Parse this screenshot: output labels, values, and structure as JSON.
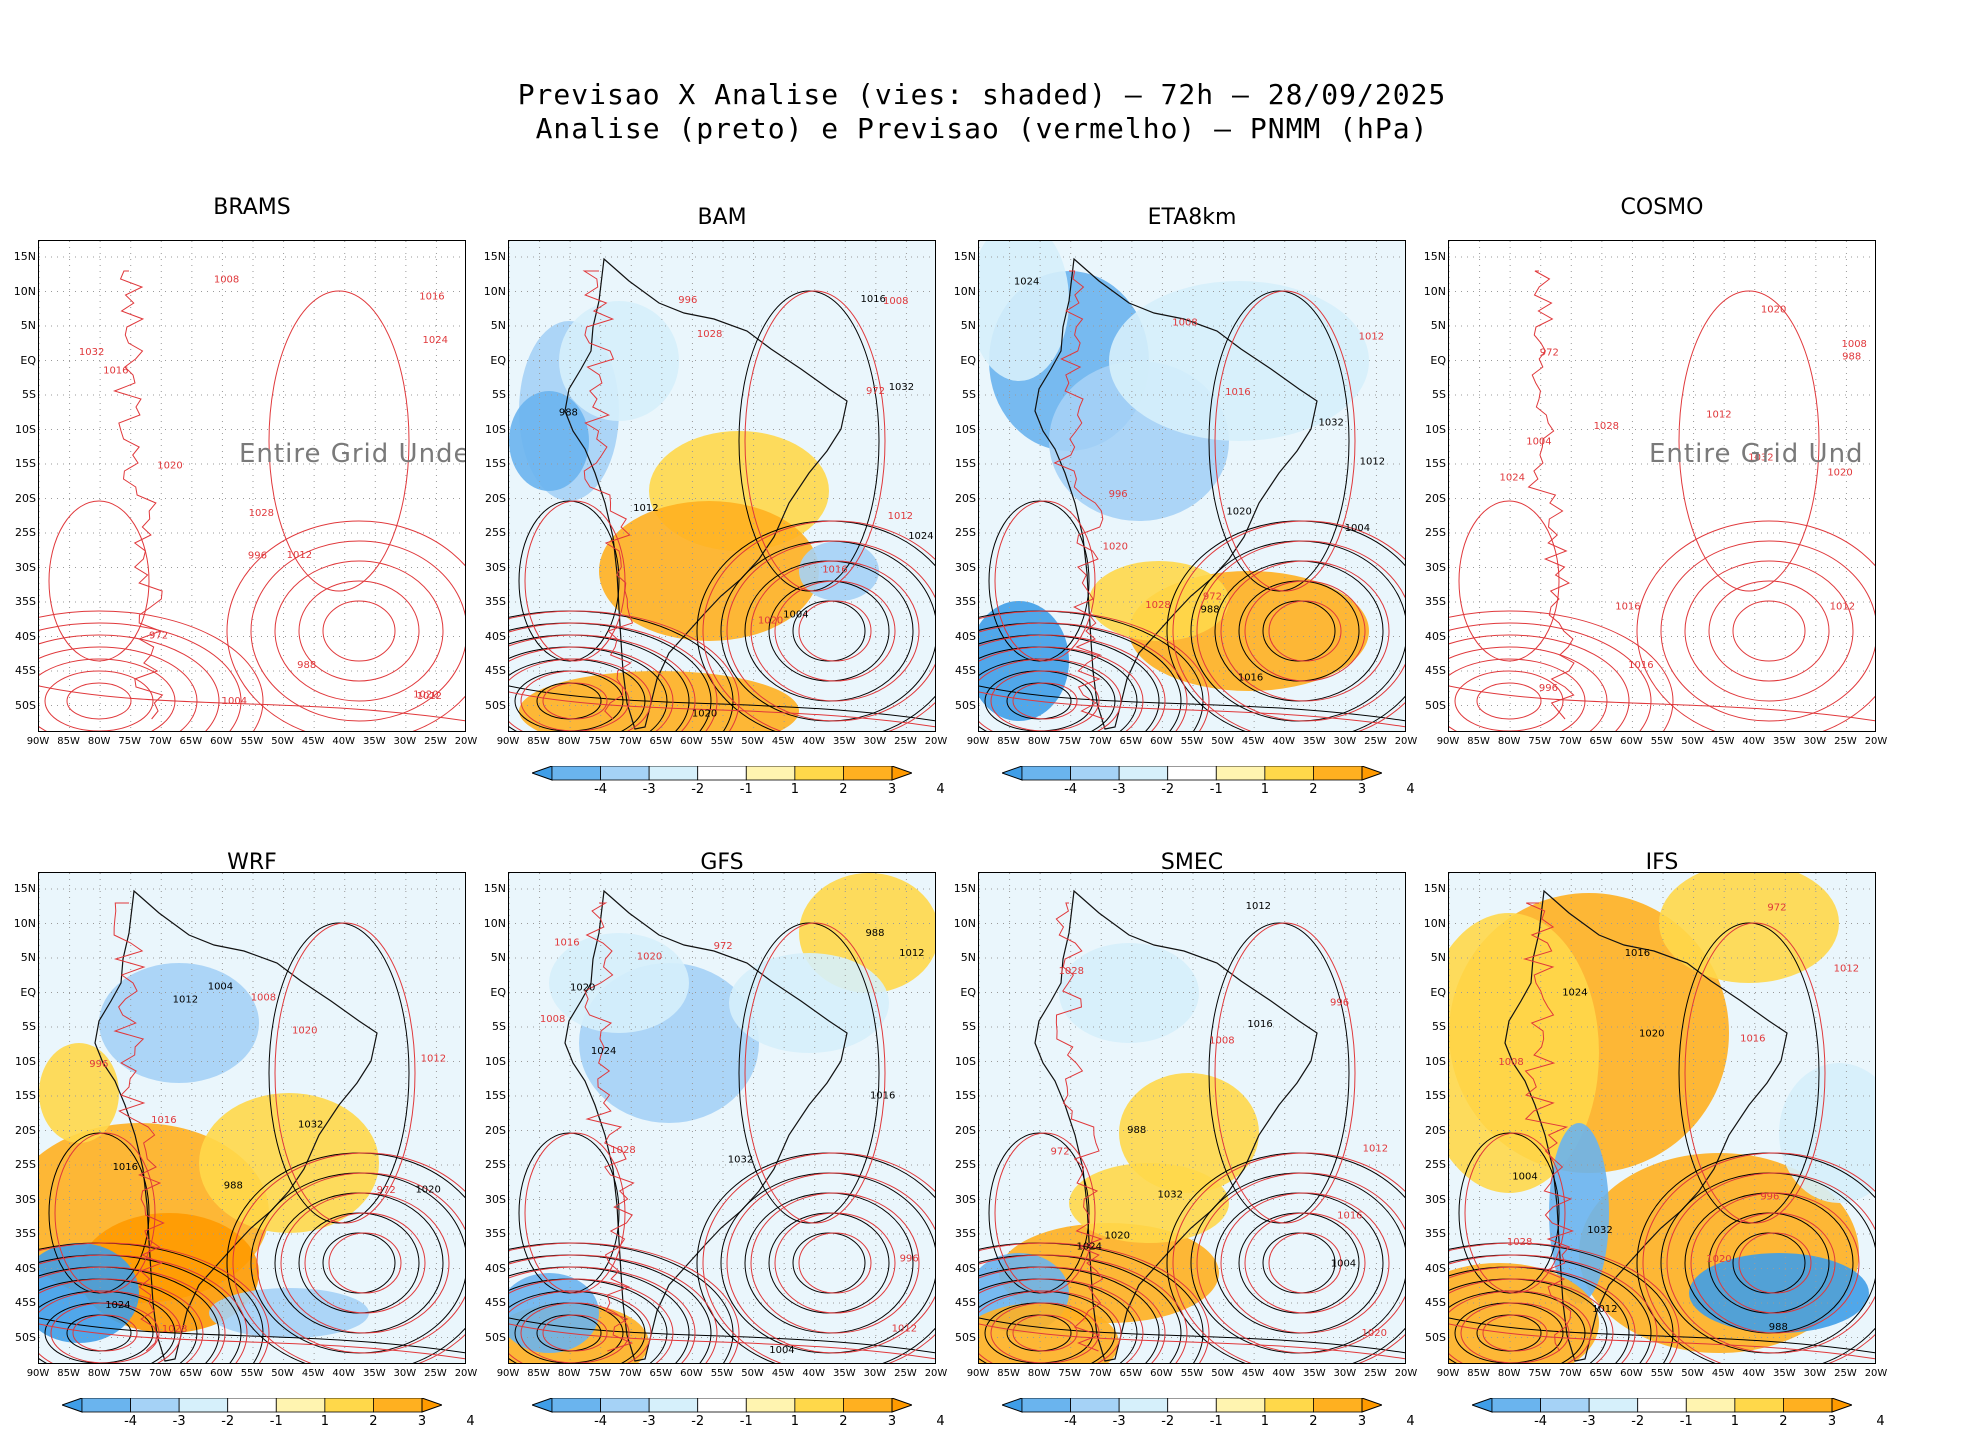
{
  "header": {
    "line1": "Previsao X Analise (vies: shaded) – 72h – 28/09/2025",
    "line2": "Analise (preto) e Previsao (vermelho) – PNMM (hPa)"
  },
  "panels": [
    {
      "id": "brams",
      "title": "BRAMS",
      "shaded": false,
      "undef": "Entire Grid Undef",
      "colorbar": false
    },
    {
      "id": "bam",
      "title": "BAM",
      "shaded": true,
      "undef": "",
      "colorbar": true
    },
    {
      "id": "eta8km",
      "title": "ETA8km",
      "shaded": true,
      "undef": "",
      "colorbar": true
    },
    {
      "id": "cosmo",
      "title": "COSMO",
      "shaded": false,
      "undef": "Entire Grid Und",
      "colorbar": false
    },
    {
      "id": "wrf",
      "title": "WRF",
      "shaded": true,
      "undef": "",
      "colorbar": true
    },
    {
      "id": "gfs",
      "title": "GFS",
      "shaded": true,
      "undef": "",
      "colorbar": true
    },
    {
      "id": "smec",
      "title": "SMEC",
      "shaded": true,
      "undef": "",
      "colorbar": true
    },
    {
      "id": "ifs",
      "title": "IFS",
      "shaded": true,
      "undef": "",
      "colorbar": true
    }
  ],
  "lat_labels": [
    "15N",
    "10N",
    "5N",
    "EQ",
    "5S",
    "10S",
    "15S",
    "20S",
    "25S",
    "30S",
    "35S",
    "40S",
    "45S",
    "50S"
  ],
  "lon_labels": [
    "90W",
    "85W",
    "80W",
    "75W",
    "70W",
    "65W",
    "60W",
    "55W",
    "50W",
    "45W",
    "40W",
    "35W",
    "30W",
    "25W",
    "20W"
  ],
  "colorbar": {
    "labels": [
      "-4",
      "-3",
      "-2",
      "-1",
      "1",
      "2",
      "3",
      "4"
    ],
    "colors": [
      "#3f9ee8",
      "#6ab4ee",
      "#a5d2f6",
      "#d6f0fb",
      "#ffffff",
      "#fff4b0",
      "#ffd84a",
      "#ffb020",
      "#ff9a00"
    ]
  },
  "contour_labels": {
    "analysis_color": "#000000",
    "forecast_color": "#e0383b",
    "values": [
      "1012",
      "1016",
      "1020",
      "1024",
      "1028",
      "1032",
      "1008",
      "1004",
      "996",
      "988",
      "972"
    ]
  }
}
